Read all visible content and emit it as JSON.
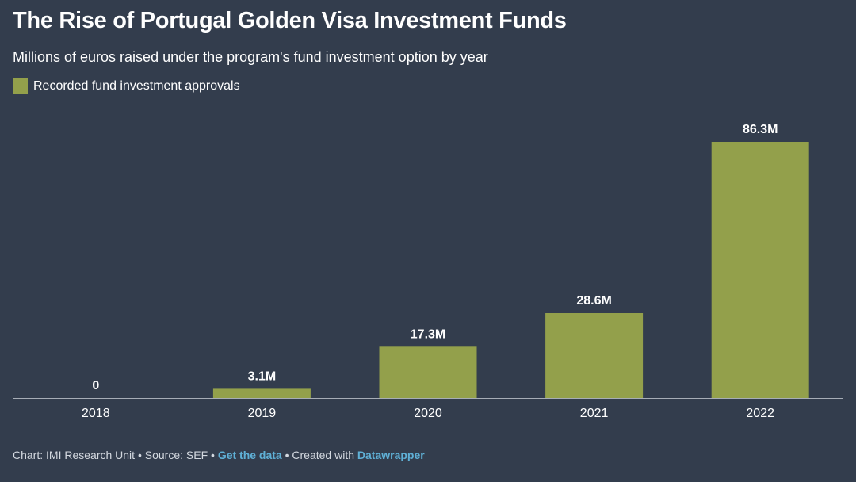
{
  "chart_data": {
    "type": "bar",
    "title": "The Rise of Portugal Golden Visa Investment Funds",
    "subtitle": "Millions of euros raised under the program's fund investment option by year",
    "categories": [
      "2018",
      "2019",
      "2020",
      "2021",
      "2022"
    ],
    "series": [
      {
        "name": "Recorded fund investment approvals",
        "values": [
          0,
          3.1,
          17.3,
          28.6,
          86.3
        ],
        "labels": [
          "0",
          "3.1M",
          "17.3M",
          "28.6M",
          "86.3M"
        ]
      }
    ],
    "ylim": [
      0,
      86.3
    ],
    "grid": false,
    "legend_position": "top-left",
    "colors": {
      "background": "#333d4d",
      "bar": "#93a04b",
      "baseline": "#a7adb6"
    }
  },
  "footer": {
    "chart_credit": "Chart: IMI Research Unit",
    "separator": " • ",
    "source": "Source: SEF",
    "get_data_link": "Get the data",
    "created_with": "Created with",
    "datawrapper_link": "Datawrapper"
  }
}
